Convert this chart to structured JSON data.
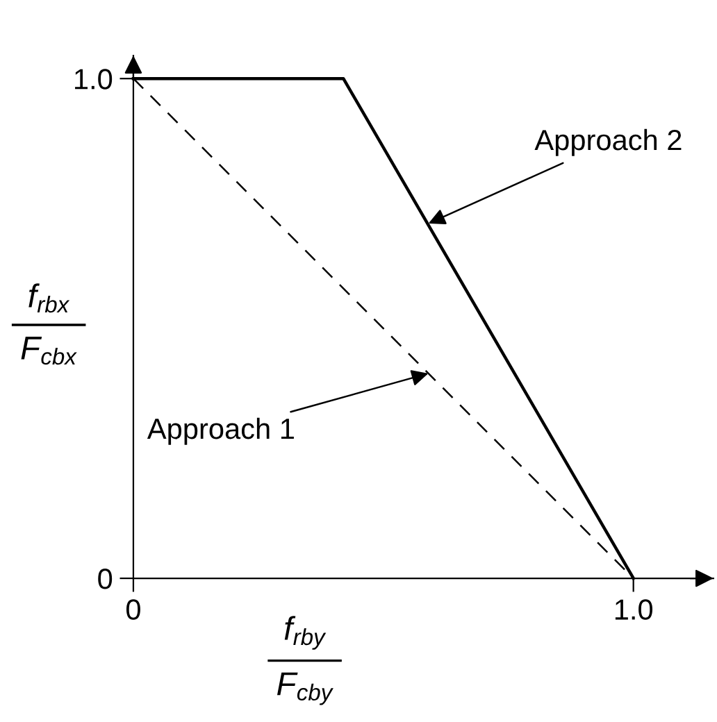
{
  "chart_data": {
    "type": "line",
    "xlabel": "f$_{rby}$\nF$_{cby}$",
    "ylabel": "f$_{rbx}$\nF$_{cbx}$",
    "series": [
      {
        "color": "#000000",
        "x": [
          0,
          0.42,
          1
        ],
        "values": [
          1,
          1,
          0
        ],
        "line_style": "solid"
      },
      {
        "color": "#000000",
        "x": [
          0,
          1
        ],
        "values": [
          1,
          0
        ],
        "line_style": "dashed"
      }
    ],
    "xlim": [
      0,
      1.16
    ],
    "ylim": [
      0,
      1.046
    ],
    "xticks": [
      0,
      {
        "value": 1,
        "label": "1.0"
      }
    ],
    "yticks": [
      0,
      {
        "value": 1,
        "label": "1.0"
      }
    ],
    "annotations": [
      {
        "text": "Approach 2",
        "x": 0.59,
        "y": 0.71
      },
      {
        "text": "Approach 1",
        "x": 0.59,
        "y": 0.41
      }
    ],
    "grid": false,
    "legend": false,
    "marker": "none"
  }
}
